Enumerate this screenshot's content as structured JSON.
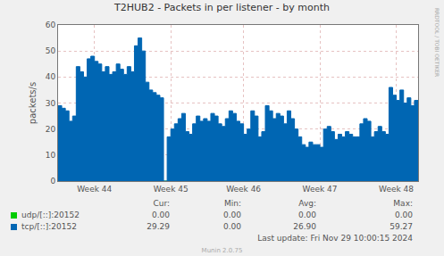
{
  "chart_data": {
    "type": "area",
    "title": "T2HUB2 - Packets in per listener - by month",
    "y_label": "packets/s",
    "side_text": "RRDTOOL / TOBI OETIKER",
    "footer": "Munin 2.0.75",
    "last_update": "Last update: Fri Nov 29 10:00:15 2024",
    "stats_columns": [
      "Cur:",
      "Min:",
      "Avg:",
      "Max:"
    ],
    "categories": [
      null,
      null,
      null,
      null,
      null,
      null,
      null,
      null,
      null,
      null,
      "Week 44",
      null,
      null,
      null,
      null,
      null,
      null,
      null,
      null,
      null,
      null,
      null,
      null,
      null,
      null,
      null,
      null,
      null,
      null,
      null,
      null,
      "Week 45",
      null,
      null,
      null,
      null,
      null,
      null,
      null,
      null,
      null,
      null,
      null,
      null,
      null,
      null,
      null,
      null,
      null,
      null,
      null,
      "Week 46",
      null,
      null,
      null,
      null,
      null,
      null,
      null,
      null,
      null,
      null,
      null,
      null,
      null,
      null,
      null,
      null,
      null,
      null,
      null,
      null,
      "Week 47",
      null,
      null,
      null,
      null,
      null,
      null,
      null,
      null,
      null,
      null,
      null,
      null,
      null,
      null,
      null,
      null,
      null,
      null,
      null,
      null,
      "Week 48",
      null,
      null,
      null,
      null,
      null,
      null
    ],
    "series": [
      {
        "name": "udp/[::]:20152",
        "color": "#00cc00",
        "stats": [
          "0.00",
          "0.00",
          "0.00",
          "0.00"
        ],
        "values": [
          0,
          0,
          0,
          0,
          0,
          0,
          0,
          0,
          0,
          0,
          0,
          0,
          0,
          0,
          0,
          0,
          0,
          0,
          0,
          0,
          0,
          0,
          0,
          0,
          0,
          0,
          0,
          0,
          0,
          0,
          0,
          0,
          0,
          0,
          0,
          0,
          0,
          0,
          0,
          0,
          0,
          0,
          0,
          0,
          0,
          0,
          0,
          0,
          0,
          0,
          0,
          0,
          0,
          0,
          0,
          0,
          0,
          0,
          0,
          0,
          0,
          0,
          0,
          0,
          0,
          0,
          0,
          0,
          0,
          0,
          0,
          0,
          0,
          0,
          0,
          0,
          0,
          0,
          0,
          0,
          0,
          0,
          0,
          0,
          0,
          0,
          0,
          0,
          0,
          0,
          0,
          0,
          0,
          0,
          0,
          0,
          0,
          0,
          0,
          0
        ]
      },
      {
        "name": "tcp/[::]:20152",
        "color": "#0066b3",
        "stats": [
          "29.29",
          "0.00",
          "26.90",
          "59.27"
        ],
        "values": [
          29,
          28,
          27,
          23,
          25,
          44,
          42,
          40,
          47,
          48,
          46,
          45,
          42,
          44,
          41,
          42,
          45,
          43,
          41,
          44,
          42,
          52,
          55,
          50,
          38,
          35,
          34,
          33,
          32,
          0,
          17,
          20,
          22,
          24,
          26,
          19,
          18,
          22,
          25,
          23,
          24,
          23,
          26,
          25,
          22,
          21,
          24,
          27,
          26,
          23,
          22,
          18,
          20,
          27,
          25,
          17,
          19,
          29,
          27,
          24,
          26,
          25,
          22,
          27,
          24,
          20,
          17,
          14,
          13,
          15,
          14,
          14,
          13,
          20,
          21,
          19,
          16,
          18,
          17,
          19,
          18,
          17,
          17,
          22,
          24,
          23,
          17,
          19,
          21,
          19,
          18,
          36,
          33,
          31,
          35,
          30,
          32,
          29,
          31,
          30
        ]
      }
    ],
    "ylim": [
      0,
      60
    ],
    "yticks": [
      0,
      10,
      20,
      30,
      40,
      50,
      60
    ],
    "grid": true
  }
}
